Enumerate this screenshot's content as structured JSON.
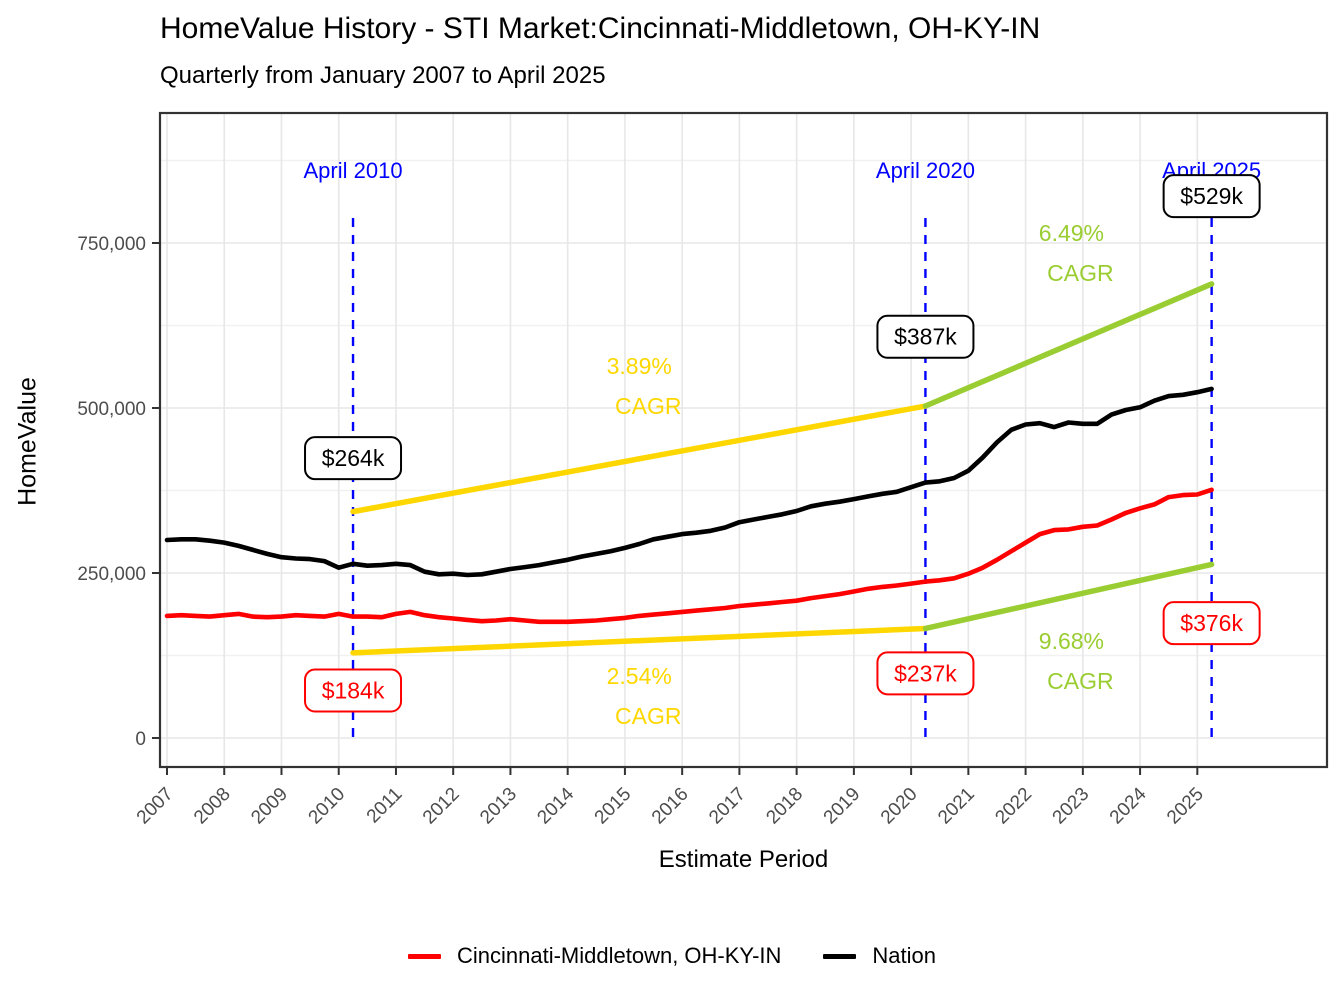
{
  "title": "HomeValue History - STI Market:Cincinnati-Middletown, OH-KY-IN",
  "subtitle": "Quarterly from January 2007 to April 2025",
  "x_axis": {
    "label": "Estimate Period",
    "tick_labels": [
      "2007",
      "2008",
      "2009",
      "2010",
      "2011",
      "2012",
      "2013",
      "2014",
      "2015",
      "2016",
      "2017",
      "2018",
      "2019",
      "2020",
      "2021",
      "2022",
      "2023",
      "2024",
      "2025"
    ]
  },
  "y_axis": {
    "label": "HomeValue",
    "ticks": [
      {
        "v": 0,
        "label": "0"
      },
      {
        "v": 250,
        "label": "250,000"
      },
      {
        "v": 500,
        "label": "500,000"
      },
      {
        "v": 750,
        "label": "750,000"
      }
    ],
    "minor_ticks": [
      125,
      375,
      625,
      875
    ]
  },
  "legend": [
    {
      "label": "Cincinnati-Middletown, OH-KY-IN",
      "color": "#FF0000"
    },
    {
      "label": "Nation",
      "color": "#000000"
    }
  ],
  "colors": {
    "cincinnati": "#FF0000",
    "nation": "#000000",
    "trend_first": "#FFD700",
    "trend_second": "#9ACD32",
    "event_line": "#0000FF",
    "grid_major": "#E7E7E7",
    "grid_minor": "#F1F1F1",
    "panel_border": "#333333",
    "axis_text": "#4D4D4D"
  },
  "chart_data": {
    "type": "line",
    "x_start": 2007,
    "x_step": 0.25,
    "x_end": 2025.25,
    "units": "USD thousands",
    "xlim": [
      2006.9,
      2027.3
    ],
    "ylim_k": [
      -45,
      947
    ],
    "grid": "on",
    "legend_position": "bottom",
    "series": [
      {
        "name": "Nation",
        "color_key": "nation",
        "values_k": [
          300,
          301,
          301,
          299,
          296,
          291,
          285,
          279,
          274,
          272,
          271,
          268,
          258,
          264,
          261,
          262,
          264,
          262,
          252,
          248,
          249,
          247,
          248,
          252,
          256,
          259,
          262,
          266,
          270,
          275,
          279,
          283,
          288,
          294,
          301,
          305,
          309,
          311,
          314,
          319,
          327,
          331,
          335,
          339,
          344,
          351,
          355,
          358,
          362,
          366,
          370,
          373,
          380,
          387,
          389,
          394,
          405,
          425,
          448,
          467,
          475,
          477,
          471,
          478,
          476,
          476,
          490,
          497,
          501,
          511,
          518,
          520,
          524,
          529
        ]
      },
      {
        "name": "Cincinnati-Middletown, OH-KY-IN",
        "color_key": "cincinnati",
        "values_k": [
          185,
          186,
          185,
          184,
          186,
          188,
          184,
          183,
          184,
          186,
          185,
          184,
          188,
          184,
          184,
          183,
          188,
          191,
          186,
          183,
          181,
          179,
          177,
          178,
          180,
          178,
          176,
          176,
          176,
          177,
          178,
          180,
          182,
          185,
          187,
          189,
          191,
          193,
          195,
          197,
          200,
          202,
          204,
          206,
          208,
          212,
          215,
          218,
          222,
          226,
          229,
          231,
          234,
          237,
          239,
          242,
          249,
          258,
          270,
          283,
          296,
          309,
          315,
          316,
          320,
          322,
          331,
          341,
          348,
          354,
          365,
          368,
          369,
          376
        ]
      }
    ],
    "trend_segments": [
      {
        "name": "nation-cagr-2010-2020",
        "color_key": "trend_first",
        "x1": 2010.25,
        "v1_k": 343,
        "x2": 2020.25,
        "v2_k": 503
      },
      {
        "name": "nation-cagr-2020-2025",
        "color_key": "trend_second",
        "x1": 2020.25,
        "v1_k": 503,
        "x2": 2025.25,
        "v2_k": 688
      },
      {
        "name": "cincinnati-cagr-2010-2020",
        "color_key": "trend_first",
        "x1": 2010.25,
        "v1_k": 129,
        "x2": 2020.25,
        "v2_k": 166
      },
      {
        "name": "cincinnati-cagr-2020-2025",
        "color_key": "trend_second",
        "x1": 2020.25,
        "v1_k": 166,
        "x2": 2025.25,
        "v2_k": 263
      }
    ],
    "event_lines": [
      {
        "x": 2010.25,
        "label": "April 2010",
        "value_labels": [
          {
            "text": "$264k",
            "series": "Nation",
            "color_key": "nation",
            "y_k": 424
          },
          {
            "text": "$184k",
            "series": "Cincinnati-Middletown, OH-KY-IN",
            "color_key": "cincinnati",
            "y_k": 72
          }
        ]
      },
      {
        "x": 2020.25,
        "label": "April 2020",
        "value_labels": [
          {
            "text": "$387k",
            "series": "Nation",
            "color_key": "nation",
            "y_k": 608
          },
          {
            "text": "$237k",
            "series": "Cincinnati-Middletown, OH-KY-IN",
            "color_key": "cincinnati",
            "y_k": 98
          }
        ]
      },
      {
        "x": 2025.25,
        "label": "April 2025",
        "value_labels": [
          {
            "text": "$529k",
            "series": "Nation",
            "color_key": "nation",
            "y_k": 821
          },
          {
            "text": "$376k",
            "series": "Cincinnati-Middletown, OH-KY-IN",
            "color_key": "cincinnati",
            "y_k": 174
          }
        ]
      }
    ],
    "cagr_annotations": [
      {
        "line1": "3.89%",
        "line2": "CAGR",
        "color_key": "trend_first",
        "x": 2015.25,
        "y_k": 533
      },
      {
        "line1": "2.54%",
        "line2": "CAGR",
        "color_key": "trend_first",
        "x": 2015.25,
        "y_k": 64
      },
      {
        "line1": "6.49%",
        "line2": "CAGR",
        "color_key": "trend_second",
        "x": 2022.8,
        "y_k": 735
      },
      {
        "line1": "9.68%",
        "line2": "CAGR",
        "color_key": "trend_second",
        "x": 2022.8,
        "y_k": 117
      }
    ]
  }
}
